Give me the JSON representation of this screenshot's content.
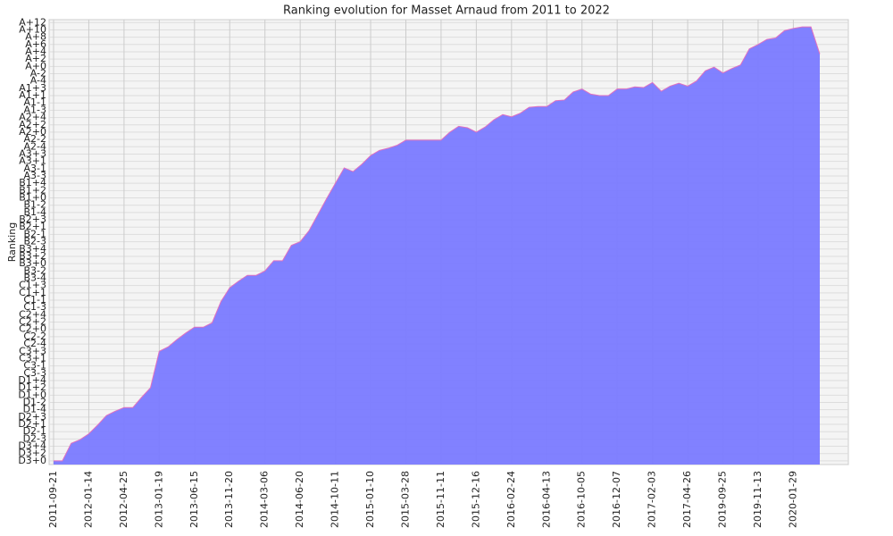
{
  "chart_data": {
    "type": "area",
    "title": "Ranking evolution for Masset Arnaud from 2011 to 2022",
    "y_label": "Ranking",
    "categories": [
      "2011-09-21",
      null,
      null,
      null,
      "2012-01-14",
      null,
      null,
      null,
      "2012-04-25",
      null,
      null,
      null,
      "2013-01-19",
      null,
      null,
      null,
      "2013-06-15",
      null,
      null,
      null,
      "2013-11-20",
      null,
      null,
      null,
      "2014-03-06",
      null,
      null,
      null,
      "2014-06-20",
      null,
      null,
      null,
      "2014-10-11",
      null,
      null,
      null,
      "2015-01-10",
      null,
      null,
      null,
      "2015-03-28",
      null,
      null,
      null,
      "2015-11-11",
      null,
      null,
      null,
      "2015-12-16",
      null,
      null,
      null,
      "2016-02-24",
      null,
      null,
      null,
      "2016-04-13",
      null,
      null,
      null,
      "2016-10-05",
      null,
      null,
      null,
      "2016-12-07",
      null,
      null,
      null,
      "2017-02-03",
      null,
      null,
      null,
      "2017-04-26",
      null,
      null,
      null,
      "2019-09-25",
      null,
      null,
      null,
      "2019-11-13",
      null,
      null,
      null,
      "2020-01-29",
      null,
      null,
      null
    ],
    "values": [
      0,
      0,
      2.4,
      2.9,
      3.7,
      4.9,
      6.2,
      6.8,
      7.3,
      7.3,
      8.7,
      10,
      15,
      15.6,
      16.6,
      17.5,
      18.3,
      18.3,
      18.9,
      21.8,
      23.7,
      24.6,
      25.4,
      25.4,
      26,
      27.4,
      27.4,
      29.5,
      30,
      31.5,
      33.7,
      35.9,
      38,
      40.1,
      39.6,
      40.6,
      41.8,
      42.5,
      42.8,
      43.2,
      43.9,
      43.9,
      43.9,
      43.9,
      43.9,
      45,
      45.8,
      45.6,
      45,
      45.7,
      46.7,
      47.4,
      47.1,
      47.6,
      48.4,
      48.5,
      48.5,
      49.3,
      49.4,
      50.5,
      50.9,
      50.2,
      50,
      50,
      50.9,
      50.9,
      51.2,
      51.1,
      51.8,
      50.6,
      51.3,
      51.7,
      51.3,
      52,
      53.4,
      53.9,
      53.1,
      53.7,
      54.2,
      56.4,
      57,
      57.7,
      57.9,
      58.9,
      59.2,
      59.4,
      59.4,
      55.7
    ],
    "color": "#7a7aff",
    "line_color": "#e070c0",
    "ylim": [
      -0.5,
      60.4
    ],
    "yticks": [
      {
        "value": 0,
        "label": "D3+0"
      },
      {
        "value": 1,
        "label": "D3+2"
      },
      {
        "value": 2,
        "label": "D3+4"
      },
      {
        "value": 3,
        "label": "D2-3"
      },
      {
        "value": 4,
        "label": "D2-1"
      },
      {
        "value": 5,
        "label": "D2+1"
      },
      {
        "value": 6,
        "label": "D2+3"
      },
      {
        "value": 7,
        "label": "D1-4"
      },
      {
        "value": 8,
        "label": "D1-2"
      },
      {
        "value": 9,
        "label": "D1+0"
      },
      {
        "value": 10,
        "label": "D1+2"
      },
      {
        "value": 11,
        "label": "D1+4"
      },
      {
        "value": 12,
        "label": "C3-3"
      },
      {
        "value": 13,
        "label": "C3-1"
      },
      {
        "value": 14,
        "label": "C3+1"
      },
      {
        "value": 15,
        "label": "C3+3"
      },
      {
        "value": 16,
        "label": "C2-4"
      },
      {
        "value": 17,
        "label": "C2-2"
      },
      {
        "value": 18,
        "label": "C2+0"
      },
      {
        "value": 19,
        "label": "C2+2"
      },
      {
        "value": 20,
        "label": "C2+4"
      },
      {
        "value": 21,
        "label": "C1-3"
      },
      {
        "value": 22,
        "label": "C1-1"
      },
      {
        "value": 23,
        "label": "C1+1"
      },
      {
        "value": 24,
        "label": "C1+3"
      },
      {
        "value": 25,
        "label": "B3-4"
      },
      {
        "value": 26,
        "label": "B3-2"
      },
      {
        "value": 27,
        "label": "B3+0"
      },
      {
        "value": 28,
        "label": "B3+2"
      },
      {
        "value": 29,
        "label": "B3+4"
      },
      {
        "value": 30,
        "label": "B2-3"
      },
      {
        "value": 31,
        "label": "B2-1"
      },
      {
        "value": 32,
        "label": "B2+1"
      },
      {
        "value": 33,
        "label": "B2+3"
      },
      {
        "value": 34,
        "label": "B1-4"
      },
      {
        "value": 35,
        "label": "B1-2"
      },
      {
        "value": 36,
        "label": "B1+0"
      },
      {
        "value": 37,
        "label": "B1+2"
      },
      {
        "value": 38,
        "label": "B1+4"
      },
      {
        "value": 39,
        "label": "A3-3"
      },
      {
        "value": 40,
        "label": "A3-1"
      },
      {
        "value": 41,
        "label": "A3+1"
      },
      {
        "value": 42,
        "label": "A3+3"
      },
      {
        "value": 43,
        "label": "A2-4"
      },
      {
        "value": 44,
        "label": "A2-2"
      },
      {
        "value": 45,
        "label": "A2+0"
      },
      {
        "value": 46,
        "label": "A2+2"
      },
      {
        "value": 47,
        "label": "A2+4"
      },
      {
        "value": 48,
        "label": "A1-3"
      },
      {
        "value": 49,
        "label": "A1-1"
      },
      {
        "value": 50,
        "label": "A1+1"
      },
      {
        "value": 51,
        "label": "A1+3"
      },
      {
        "value": 52,
        "label": "A-4"
      },
      {
        "value": 53,
        "label": "A-2"
      },
      {
        "value": 54,
        "label": "A+0"
      },
      {
        "value": 55,
        "label": "A+2"
      },
      {
        "value": 56,
        "label": "A+4"
      },
      {
        "value": 57,
        "label": "A+6"
      },
      {
        "value": 58,
        "label": "A+8"
      },
      {
        "value": 59,
        "label": "A+10"
      },
      {
        "value": 60,
        "label": "A+12"
      }
    ],
    "grid": true
  }
}
